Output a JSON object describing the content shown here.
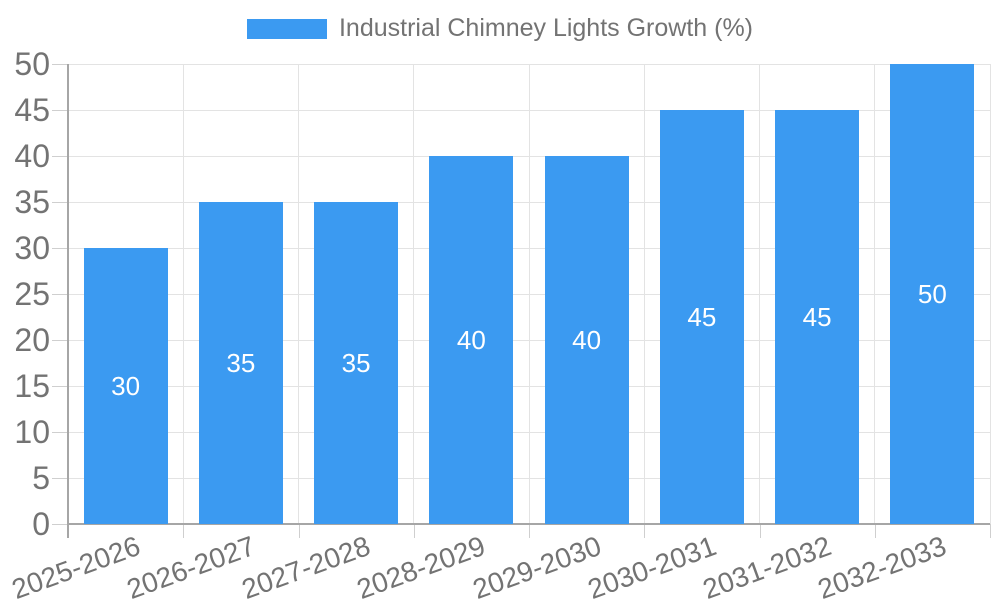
{
  "legend": {
    "label": "Industrial Chimney Lights Growth (%)"
  },
  "colors": {
    "bar": "#3B9AF1",
    "grid": "#E3E3E3",
    "axis": "#A6A6A6",
    "tick_mark": "#CFCFCF",
    "text": "#737373",
    "value_label": "#FFFFFF",
    "background": "#FFFFFF"
  },
  "chart_data": {
    "type": "bar",
    "title": "",
    "categories": [
      "2025-2026",
      "2026-2027",
      "2027-2028",
      "2028-2029",
      "2029-2030",
      "2030-2031",
      "2031-2032",
      "2032-2033"
    ],
    "series": [
      {
        "name": "Industrial Chimney Lights Growth (%)",
        "values": [
          30,
          35,
          35,
          40,
          40,
          45,
          45,
          50
        ]
      }
    ],
    "xlabel": "",
    "ylabel": "",
    "ylim": [
      0,
      50
    ],
    "yticks": [
      0,
      5,
      10,
      15,
      20,
      25,
      30,
      35,
      40,
      45,
      50
    ],
    "grid": "both",
    "legend_position": "top",
    "value_labels_position": "inside-center",
    "x_tick_rotation_deg": -20
  }
}
